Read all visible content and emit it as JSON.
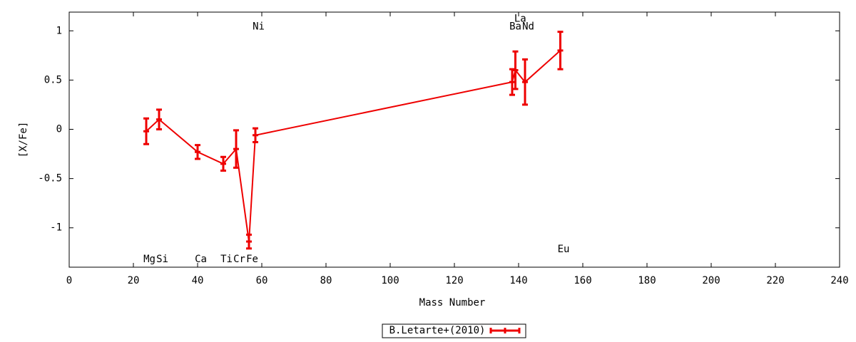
{
  "chart_data": {
    "type": "errorbar-line",
    "xlabel": "Mass Number",
    "ylabel": "[X/Fe]",
    "xlim": [
      0,
      240
    ],
    "xticks": [
      0,
      20,
      40,
      60,
      80,
      100,
      120,
      140,
      160,
      180,
      200,
      220,
      240
    ],
    "ylim": [
      -1.4,
      1.19
    ],
    "yticks": [
      -1,
      -0.5,
      0,
      0.5,
      1
    ],
    "legend": "bottom",
    "series": [
      {
        "name": "B.Letarte+(2010)",
        "color": "#ee0000",
        "x": [
          24,
          28,
          40,
          48,
          52,
          56,
          58,
          138,
          139,
          142,
          153
        ],
        "values": [
          -0.02,
          0.1,
          -0.23,
          -0.35,
          -0.2,
          -1.14,
          -0.06,
          0.48,
          0.6,
          0.48,
          0.8
        ],
        "errors": [
          0.13,
          0.1,
          0.07,
          0.07,
          0.19,
          0.07,
          0.07,
          0.13,
          0.19,
          0.23,
          0.19
        ]
      }
    ],
    "annotations": [
      {
        "text": "Mg",
        "x": 25,
        "y": -1.32
      },
      {
        "text": "Si",
        "x": 29,
        "y": -1.32
      },
      {
        "text": "Ca",
        "x": 41,
        "y": -1.32
      },
      {
        "text": "Ti",
        "x": 49,
        "y": -1.32
      },
      {
        "text": "Cr",
        "x": 53,
        "y": -1.32
      },
      {
        "text": "Fe",
        "x": 57,
        "y": -1.32
      },
      {
        "text": "Ni",
        "x": 59,
        "y": 1.04
      },
      {
        "text": "La",
        "x": 140.5,
        "y": 1.12
      },
      {
        "text": "Ba",
        "x": 139,
        "y": 1.04
      },
      {
        "text": "Nd",
        "x": 143,
        "y": 1.04
      },
      {
        "text": "Eu",
        "x": 154,
        "y": -1.22
      }
    ]
  }
}
